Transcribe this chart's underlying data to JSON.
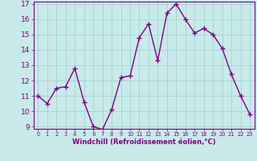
{
  "x": [
    0,
    1,
    2,
    3,
    4,
    5,
    6,
    7,
    8,
    9,
    10,
    11,
    12,
    13,
    14,
    15,
    16,
    17,
    18,
    19,
    20,
    21,
    22,
    23
  ],
  "y": [
    11.0,
    10.5,
    11.5,
    11.6,
    12.8,
    10.6,
    9.0,
    8.8,
    10.1,
    12.2,
    12.3,
    14.8,
    15.7,
    13.3,
    16.4,
    17.0,
    16.0,
    15.1,
    15.4,
    15.0,
    14.1,
    12.4,
    11.0,
    9.8
  ],
  "line_color": "#800080",
  "marker": "+",
  "marker_size": 4,
  "line_width": 1.0,
  "bg_color": "#c8eaea",
  "grid_color": "#a0cccc",
  "xlabel": "Windchill (Refroidissement éolien,°C)",
  "ylim": [
    9,
    17
  ],
  "xlim": [
    -0.5,
    23.5
  ],
  "yticks": [
    9,
    10,
    11,
    12,
    13,
    14,
    15,
    16,
    17
  ],
  "xticks": [
    0,
    1,
    2,
    3,
    4,
    5,
    6,
    7,
    8,
    9,
    10,
    11,
    12,
    13,
    14,
    15,
    16,
    17,
    18,
    19,
    20,
    21,
    22,
    23
  ],
  "tick_color": "#800080",
  "label_color": "#800080",
  "xlabel_fontsize": 6.0,
  "ytick_fontsize": 6.5,
  "xtick_fontsize": 4.8
}
